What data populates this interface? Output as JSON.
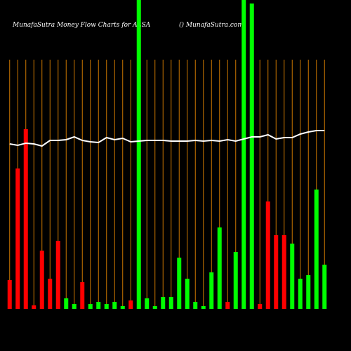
{
  "chart_data": {
    "type": "bar",
    "title": "MunafaSutra  Money Flow  Charts for ALSA",
    "subtitle": "() MunafaSutra.com",
    "categories": [
      null,
      null,
      null,
      null,
      null,
      null,
      null,
      null,
      null,
      null,
      null,
      null,
      null,
      null,
      null,
      null,
      null,
      null,
      null,
      null,
      null,
      null,
      null,
      null,
      null,
      null,
      null,
      null,
      null,
      null,
      null,
      null,
      null,
      null,
      null,
      null,
      null,
      null,
      null,
      null
    ],
    "values": [
      41,
      200,
      256,
      5,
      83,
      43,
      97,
      15,
      7,
      38,
      7,
      10,
      7,
      10,
      4,
      12,
      440,
      15,
      4,
      17,
      17,
      73,
      43,
      10,
      4,
      52,
      116,
      10,
      81,
      440,
      435,
      7,
      153,
      105,
      105,
      93,
      43,
      48,
      170,
      63
    ],
    "colors": [
      "#ff0000",
      "#ff0000",
      "#ff0000",
      "#ff0000",
      "#ff0000",
      "#ff0000",
      "#ff0000",
      "#00ff00",
      "#00ff00",
      "#ff0000",
      "#00ff00",
      "#00ff00",
      "#00ff00",
      "#00ff00",
      "#00ff00",
      "#ff0000",
      "#00ff00",
      "#00ff00",
      "#00ff00",
      "#00ff00",
      "#00ff00",
      "#00ff00",
      "#00ff00",
      "#00ff00",
      "#00ff00",
      "#00ff00",
      "#00ff00",
      "#ff0000",
      "#00ff00",
      "#00ff00",
      "#00ff00",
      "#ff0000",
      "#ff0000",
      "#ff0000",
      "#ff0000",
      "#00ff00",
      "#00ff00",
      "#00ff00",
      "#00ff00",
      "#00ff00"
    ],
    "line": [
      235,
      233,
      236,
      235,
      232,
      240,
      240,
      241,
      245,
      240,
      238,
      237,
      244,
      241,
      243,
      238,
      239,
      240,
      240,
      240,
      239,
      239,
      239,
      240,
      239,
      240,
      239,
      241,
      239,
      242,
      245,
      245,
      248,
      242,
      244,
      244,
      249,
      252,
      254,
      254
    ],
    "line_color": "#ffffff",
    "grid_color": "#cc7700",
    "ylim": [
      0,
      440
    ]
  }
}
